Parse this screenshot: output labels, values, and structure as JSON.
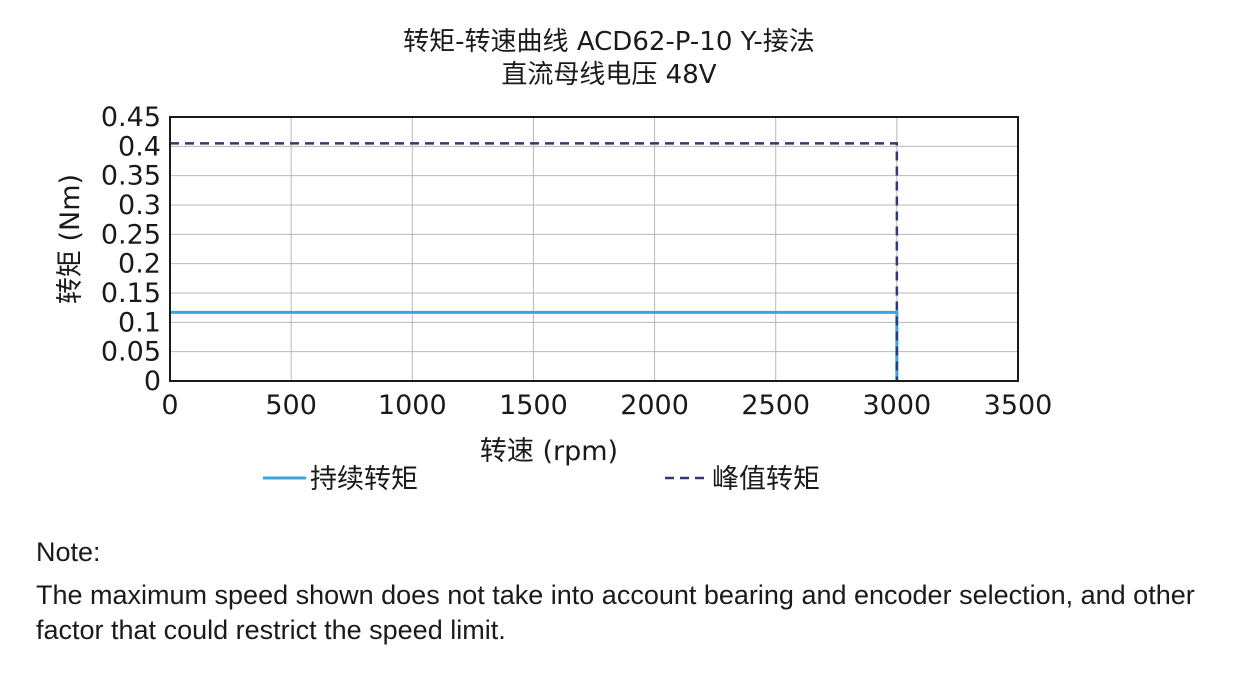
{
  "chart_data": {
    "type": "line",
    "title": "转矩-转速曲线 ACD62-P-10 Y-接法",
    "subtitle": "直流母线电压 48V",
    "xlabel": "转速 (rpm)",
    "ylabel": "转矩 (Nm)",
    "xlim": [
      0,
      3500
    ],
    "ylim": [
      0,
      0.45
    ],
    "x_ticks": [
      0,
      500,
      1000,
      1500,
      2000,
      2500,
      3000,
      3500
    ],
    "x_tick_labels": [
      "0",
      "500",
      "1000",
      "1500",
      "2000",
      "2500",
      "3000",
      "3500"
    ],
    "y_ticks": [
      0,
      0.05,
      0.1,
      0.15,
      0.2,
      0.25,
      0.3,
      0.35,
      0.4,
      0.45
    ],
    "y_tick_labels": [
      "0",
      "0.05",
      "0.1",
      "0.15",
      "0.2",
      "0.25",
      "0.3",
      "0.35",
      "0.4",
      "0.45"
    ],
    "grid": true,
    "legend_position": "bottom",
    "series": [
      {
        "name": "持续转矩",
        "style": "solid",
        "color": "#3aa7dc",
        "x": [
          0,
          3000,
          3000
        ],
        "y": [
          0.117,
          0.117,
          0
        ]
      },
      {
        "name": "峰值转矩",
        "style": "dashed",
        "color": "#2e3a73",
        "x": [
          0,
          3000,
          3000
        ],
        "y": [
          0.405,
          0.405,
          0
        ]
      }
    ]
  },
  "note": {
    "label": "Note:",
    "text": "The maximum speed shown does not take into account bearing and encoder selection, and other factor that could restrict the speed limit."
  }
}
